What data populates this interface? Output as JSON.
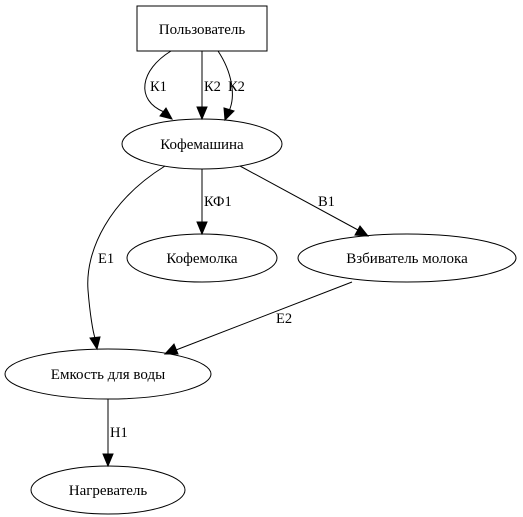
{
  "nodes": {
    "user": "Пользователь",
    "coffee_machine": "Кофемашина",
    "grinder": "Кофемолка",
    "milk_frother": "Взбиватель молока",
    "water_tank": "Емкость для воды",
    "heater": "Нагреватель"
  },
  "edges": {
    "k1": "К1",
    "k2a": "К2",
    "k2b": "К2",
    "kf1": "КФ1",
    "v1": "В1",
    "e1": "Е1",
    "e2": "Е2",
    "n1": "Н1"
  }
}
